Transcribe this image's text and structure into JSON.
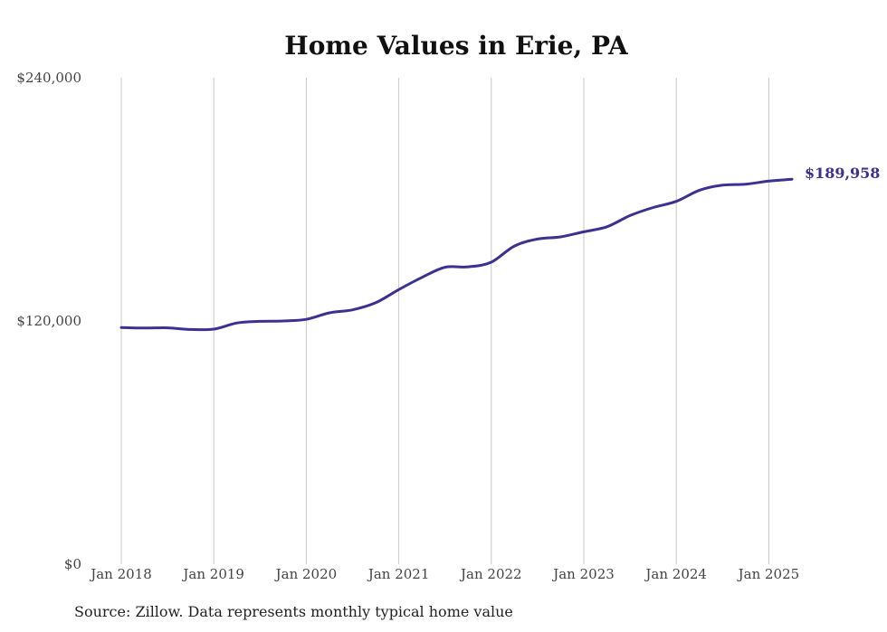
{
  "chart_data": {
    "type": "line",
    "title": "Home Values in Erie, PA",
    "xlabel": "",
    "ylabel": "",
    "ylim": [
      0,
      240000
    ],
    "y_ticks": [
      0,
      120000,
      240000
    ],
    "y_tick_labels": [
      "$0",
      "$120,000",
      "$240,000"
    ],
    "x_ticks": [
      "2018-01",
      "2019-01",
      "2020-01",
      "2021-01",
      "2022-01",
      "2023-01",
      "2024-01",
      "2025-01"
    ],
    "x_tick_labels": [
      "Jan 2018",
      "Jan 2019",
      "Jan 2020",
      "Jan 2021",
      "Jan 2022",
      "Jan 2023",
      "Jan 2024",
      "Jan 2025"
    ],
    "xlim": [
      "2018-01",
      "2025-04"
    ],
    "grid": "vertical",
    "line_color": "#3b3190",
    "series": [
      {
        "values": [
          [
            "2018-01",
            116800
          ],
          [
            "2018-04",
            116500
          ],
          [
            "2018-07",
            116600
          ],
          [
            "2018-10",
            115800
          ],
          [
            "2019-01",
            116000
          ],
          [
            "2019-04",
            119000
          ],
          [
            "2019-07",
            119800
          ],
          [
            "2019-10",
            120000
          ],
          [
            "2020-01",
            120800
          ],
          [
            "2020-04",
            124000
          ],
          [
            "2020-07",
            125500
          ],
          [
            "2020-10",
            129000
          ],
          [
            "2021-01",
            135500
          ],
          [
            "2021-04",
            141500
          ],
          [
            "2021-07",
            146500
          ],
          [
            "2021-10",
            146700
          ],
          [
            "2022-01",
            149000
          ],
          [
            "2022-04",
            157000
          ],
          [
            "2022-07",
            160400
          ],
          [
            "2022-10",
            161500
          ],
          [
            "2023-01",
            164000
          ],
          [
            "2023-04",
            166500
          ],
          [
            "2023-07",
            172000
          ],
          [
            "2023-10",
            176000
          ],
          [
            "2024-01",
            179000
          ],
          [
            "2024-04",
            184500
          ],
          [
            "2024-07",
            187000
          ],
          [
            "2024-10",
            187500
          ],
          [
            "2025-01",
            189000
          ],
          [
            "2025-04",
            189958
          ]
        ]
      }
    ],
    "end_label": "$189,958"
  },
  "source_text": "Source: Zillow. Data represents monthly typical home value"
}
